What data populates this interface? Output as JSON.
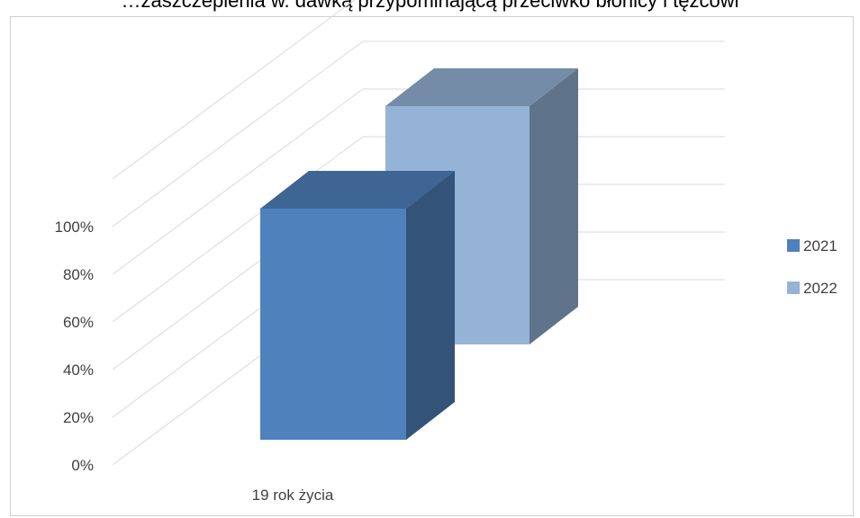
{
  "chart_data": {
    "type": "bar",
    "title": "…zaszczepienia w. dawką przypominającą przeciwko błonicy i tężcowi",
    "categories": [
      "19 rok życia"
    ],
    "series": [
      {
        "name": "2021",
        "values": [
          0.97
        ],
        "color": "#4f81bd"
      },
      {
        "name": "2022",
        "values": [
          1.0
        ],
        "color": "#95b3d7"
      }
    ],
    "yticks": [
      "0%",
      "20%",
      "40%",
      "60%",
      "80%",
      "100%"
    ],
    "ylim": [
      0,
      1
    ],
    "grid": true,
    "legend": "right",
    "style": "3d-column"
  }
}
